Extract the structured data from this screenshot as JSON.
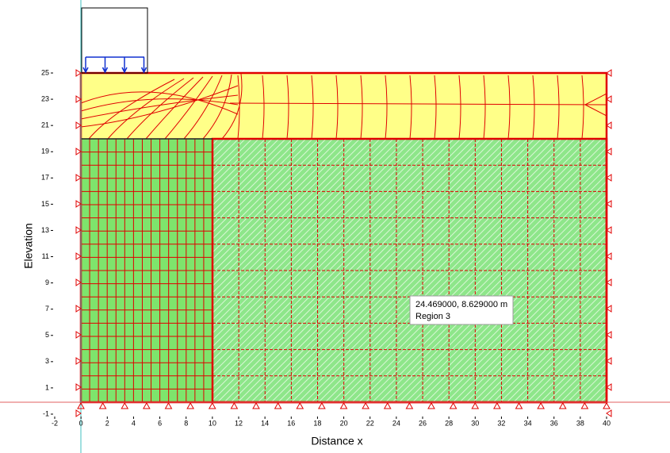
{
  "chart_data": {
    "type": "mesh",
    "xlabel": "Distance x",
    "ylabel": "Elevation",
    "xlim": [
      -2,
      40
    ],
    "ylim": [
      -1,
      25
    ],
    "xticks": [
      -2,
      0,
      2,
      4,
      6,
      8,
      10,
      12,
      14,
      16,
      18,
      20,
      22,
      24,
      26,
      28,
      30,
      32,
      34,
      36,
      38,
      40
    ],
    "yticks": [
      -1,
      1,
      3,
      5,
      7,
      9,
      11,
      13,
      15,
      17,
      19,
      21,
      23,
      25
    ]
  },
  "tooltip": {
    "coordinates": "24.469000, 8.629000 m",
    "region": "Region 3"
  }
}
